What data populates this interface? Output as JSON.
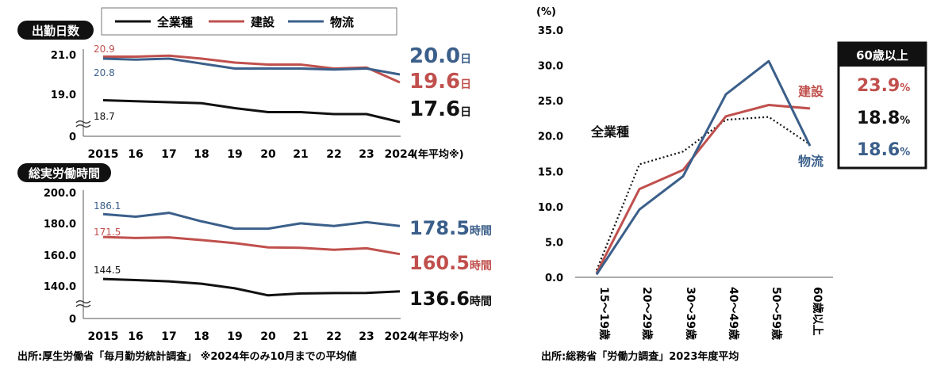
{
  "colors": {
    "all": "#111111",
    "construction": "#c0504d",
    "logistics": "#3b5f8a",
    "axis": "#555555"
  },
  "legend": {
    "all": "全業種",
    "construction": "建設",
    "logistics": "物流"
  },
  "source_left": "出所:厚生労働省「毎月勤労統計調査」 ※2024年のみ10月までの平均値",
  "source_right": "出所:総務省「労働力調査」2023年度平均",
  "chart_data": [
    {
      "type": "line",
      "title": "出勤日数",
      "categories": [
        "2015",
        "16",
        "17",
        "18",
        "19",
        "20",
        "21",
        "22",
        "23",
        "2024"
      ],
      "x_suffix": "(年平均※)",
      "ytick_labels": [
        "0",
        "19.0",
        "21.0"
      ],
      "series": [
        {
          "name": "全業種",
          "key": "all",
          "values": [
            18.7,
            18.65,
            18.6,
            18.55,
            18.3,
            18.1,
            18.1,
            18.0,
            18.0,
            17.6
          ]
        },
        {
          "name": "建設",
          "key": "construction",
          "values": [
            20.9,
            20.9,
            20.95,
            20.8,
            20.6,
            20.5,
            20.5,
            20.3,
            20.35,
            19.6
          ]
        },
        {
          "name": "物流",
          "key": "logistics",
          "values": [
            20.8,
            20.75,
            20.8,
            20.55,
            20.3,
            20.3,
            20.3,
            20.25,
            20.3,
            20.0
          ]
        }
      ],
      "start_labels": {
        "construction": "20.9",
        "logistics": "20.8",
        "all": "18.7"
      },
      "end_labels": [
        {
          "key": "logistics",
          "value": "20.0",
          "unit": "日"
        },
        {
          "key": "construction",
          "value": "19.6",
          "unit": "日"
        },
        {
          "key": "all",
          "value": "17.6",
          "unit": "日"
        }
      ]
    },
    {
      "type": "line",
      "title": "総実労働時間",
      "categories": [
        "2015",
        "16",
        "17",
        "18",
        "19",
        "20",
        "21",
        "22",
        "23",
        "2024"
      ],
      "x_suffix": "(年平均※)",
      "ytick_labels": [
        "0",
        "140.0",
        "160.0",
        "180.0",
        "200.0"
      ],
      "series": [
        {
          "name": "全業種",
          "key": "all",
          "values": [
            144.5,
            143.8,
            143.0,
            141.5,
            138.5,
            134.0,
            135.2,
            135.5,
            135.6,
            136.6
          ]
        },
        {
          "name": "建設",
          "key": "construction",
          "values": [
            171.5,
            170.8,
            171.2,
            169.5,
            167.5,
            164.8,
            164.5,
            163.3,
            164.2,
            160.5
          ]
        },
        {
          "name": "物流",
          "key": "logistics",
          "values": [
            186.1,
            184.5,
            187.0,
            181.5,
            176.8,
            176.8,
            180.2,
            178.5,
            181.0,
            178.5
          ]
        }
      ],
      "start_labels": {
        "logistics": "186.1",
        "construction": "171.5",
        "all": "144.5"
      },
      "end_labels": [
        {
          "key": "logistics",
          "value": "178.5",
          "unit": "時間"
        },
        {
          "key": "construction",
          "value": "160.5",
          "unit": "時間"
        },
        {
          "key": "all",
          "value": "136.6",
          "unit": "時間"
        }
      ]
    },
    {
      "type": "line",
      "y_unit": "(%)",
      "ylim": [
        0,
        35
      ],
      "yticks": [
        "0.0",
        "5.0",
        "10.0",
        "15.0",
        "20.0",
        "25.0",
        "30.0",
        "35.0"
      ],
      "categories": [
        "15〜19歳",
        "20〜29歳",
        "30〜39歳",
        "40〜49歳",
        "50〜59歳",
        "60歳以上"
      ],
      "series": [
        {
          "name": "全業種",
          "key": "all",
          "style": "dotted",
          "values": [
            1.0,
            16.0,
            17.8,
            22.3,
            22.7,
            18.8
          ]
        },
        {
          "name": "建設",
          "key": "construction",
          "values": [
            0.6,
            12.5,
            15.2,
            22.8,
            24.4,
            23.9
          ]
        },
        {
          "name": "物流",
          "key": "logistics",
          "values": [
            0.4,
            9.6,
            14.3,
            25.9,
            30.6,
            18.6
          ]
        }
      ],
      "box": {
        "title": "60歳以上",
        "rows": [
          {
            "key": "construction",
            "value": "23.9",
            "unit": "%"
          },
          {
            "key": "all",
            "value": "18.8",
            "unit": "%"
          },
          {
            "key": "logistics",
            "value": "18.6",
            "unit": "%"
          }
        ]
      }
    }
  ]
}
